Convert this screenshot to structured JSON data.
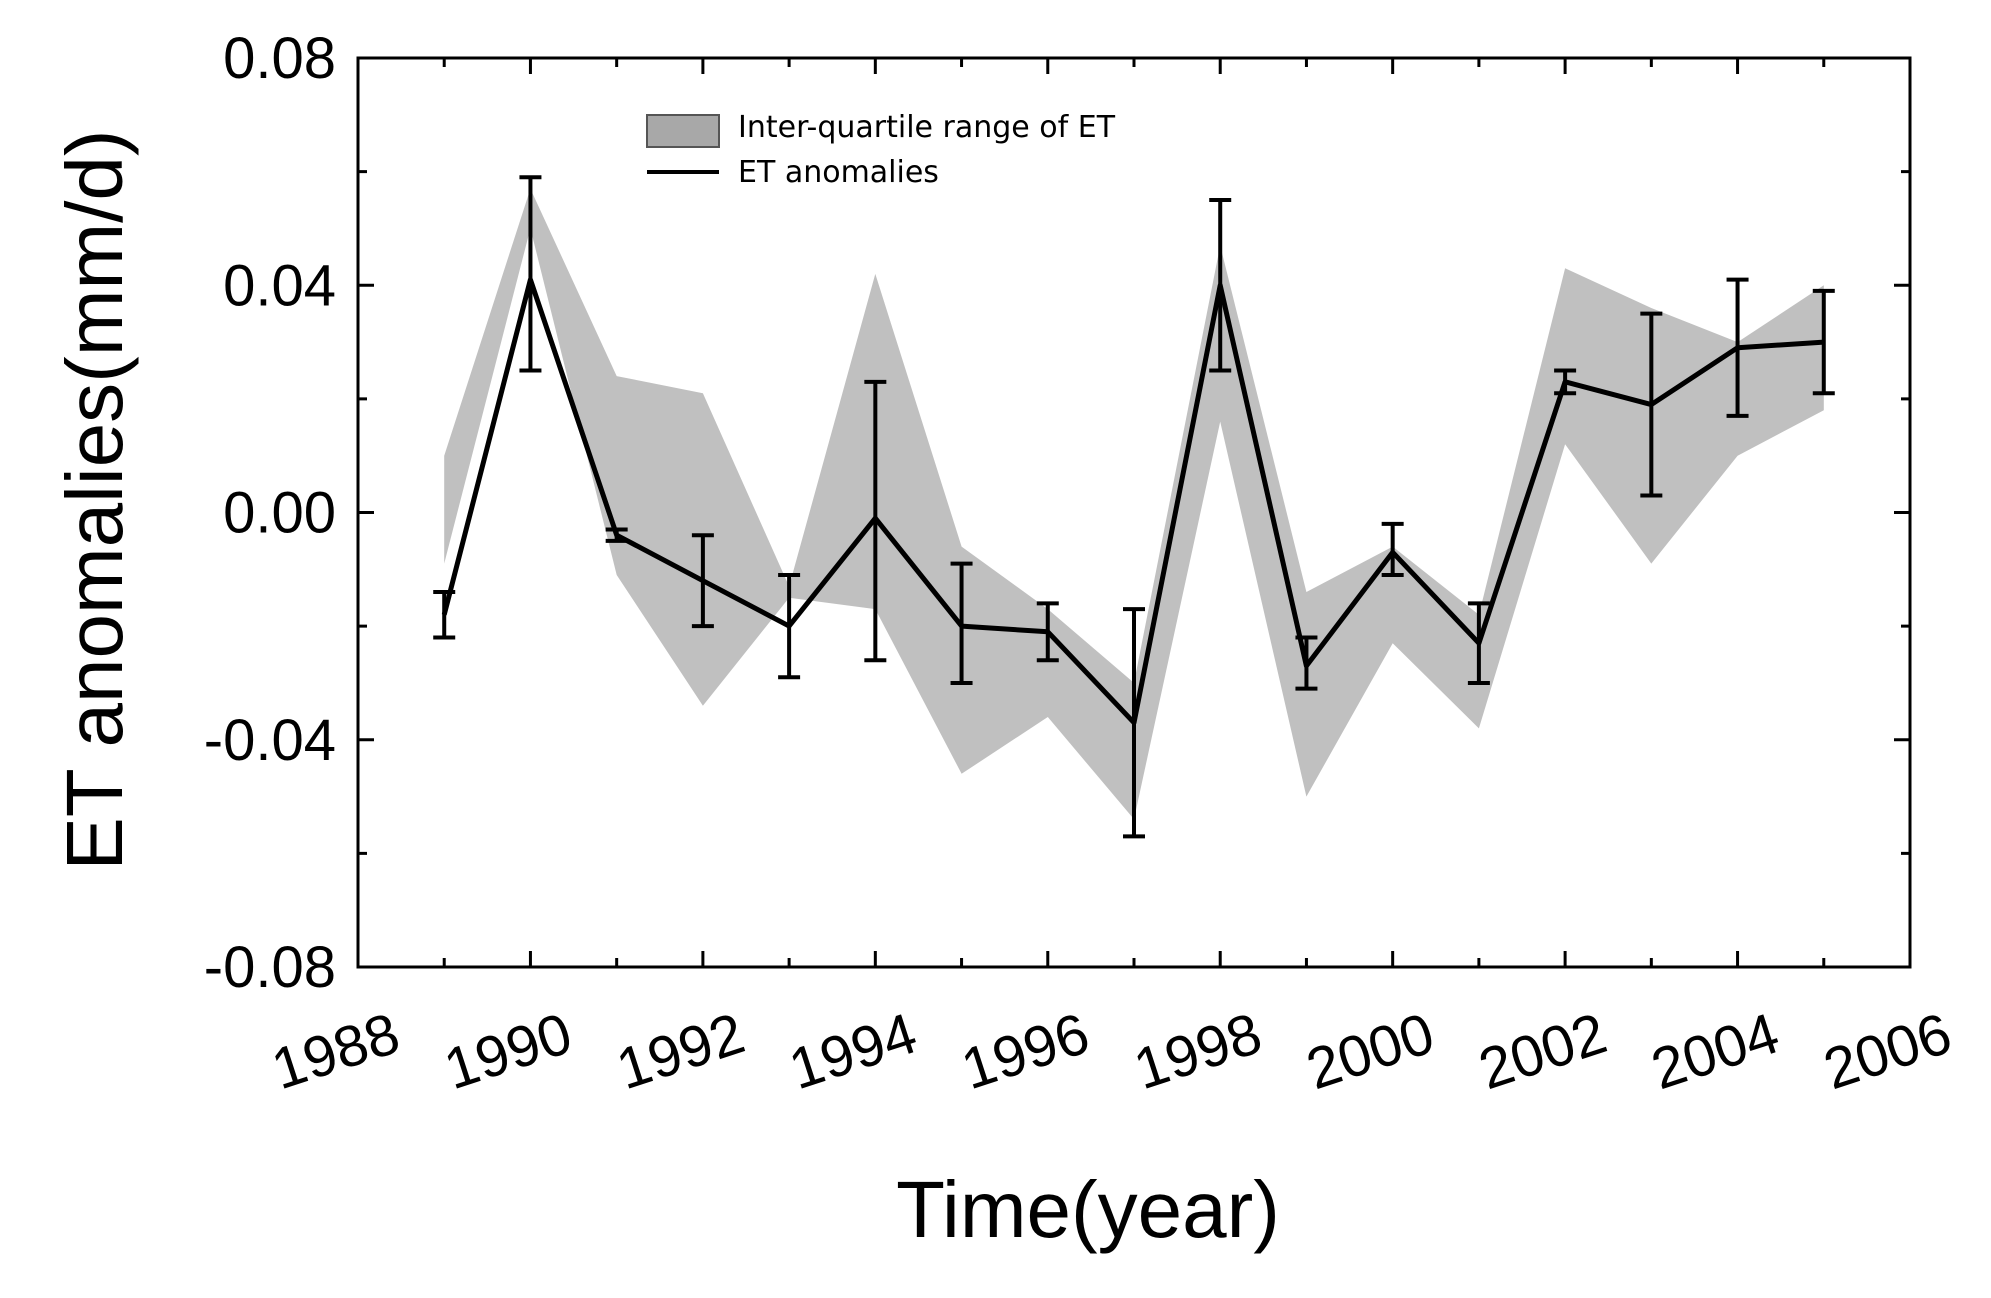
{
  "chart_data": {
    "type": "line",
    "title": "",
    "xlabel": "Time(year)",
    "ylabel": "ET anomalies(mm/d)",
    "xlim": [
      1988,
      2006
    ],
    "ylim": [
      -0.08,
      0.08
    ],
    "x_ticks": [
      1988,
      1990,
      1992,
      1994,
      1996,
      1998,
      2000,
      2002,
      2004,
      2006
    ],
    "y_ticks": [
      0.08,
      0.04,
      0.0,
      -0.04,
      -0.08
    ],
    "y_tick_labels": [
      "0.08",
      "0.04",
      "0.00",
      "-0.04",
      "-0.08"
    ],
    "x_tick_labels": [
      "1988",
      "1990",
      "1992",
      "1994",
      "1996",
      "1998",
      "2000",
      "2002",
      "2004",
      "2006"
    ],
    "grid": false,
    "legend_position": "top-center",
    "legend": [
      {
        "name": "Inter-quartile range of ET",
        "kind": "band"
      },
      {
        "name": "ET anomalies",
        "kind": "line"
      }
    ],
    "colors": {
      "band": "#c0c0c0",
      "legend_band": "#a8a8a8",
      "line": "#000000"
    },
    "x": [
      1989,
      1990,
      1991,
      1992,
      1993,
      1994,
      1995,
      1996,
      1997,
      1998,
      1999,
      2000,
      2001,
      2002,
      2003,
      2004,
      2005
    ],
    "series": [
      {
        "name": "ET anomalies",
        "values": [
          -0.018,
          0.041,
          -0.004,
          -0.012,
          -0.02,
          -0.001,
          -0.02,
          -0.021,
          -0.037,
          0.04,
          -0.027,
          -0.007,
          -0.023,
          0.023,
          0.019,
          0.029,
          0.03
        ],
        "error_low": [
          -0.022,
          0.025,
          -0.005,
          -0.02,
          -0.029,
          -0.026,
          -0.03,
          -0.026,
          -0.057,
          0.025,
          -0.031,
          -0.011,
          -0.03,
          0.021,
          0.003,
          0.017,
          0.021
        ],
        "error_high": [
          -0.014,
          0.059,
          -0.003,
          -0.004,
          -0.011,
          0.023,
          -0.009,
          -0.016,
          -0.017,
          0.055,
          -0.022,
          -0.002,
          -0.016,
          0.025,
          0.035,
          0.041,
          0.039
        ]
      },
      {
        "name": "Inter-quartile range of ET",
        "lower": [
          -0.009,
          0.05,
          -0.011,
          -0.034,
          -0.015,
          -0.017,
          -0.046,
          -0.036,
          -0.054,
          0.016,
          -0.05,
          -0.023,
          -0.038,
          0.012,
          -0.009,
          0.01,
          0.018
        ],
        "upper": [
          0.01,
          0.057,
          0.024,
          0.021,
          -0.013,
          0.042,
          -0.006,
          -0.017,
          -0.03,
          0.047,
          -0.014,
          -0.006,
          -0.018,
          0.043,
          0.036,
          0.03,
          0.04
        ]
      }
    ]
  }
}
